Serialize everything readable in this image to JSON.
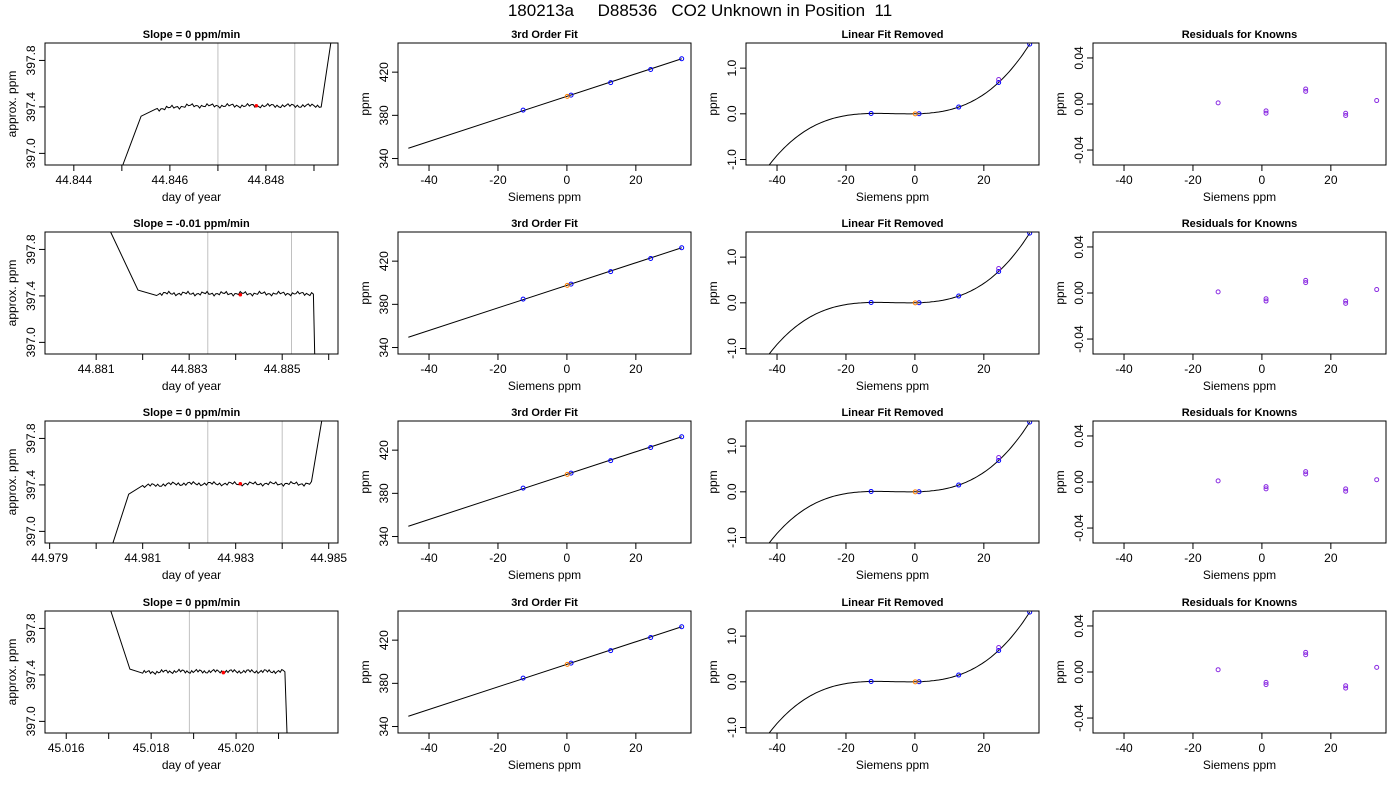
{
  "page": {
    "title": "180213a     D88536   CO2 Unknown in Position  11"
  },
  "chart_data": [
    {
      "type": "line",
      "title": "Slope =  0  ppm/min",
      "xlabel": "day of year",
      "ylabel": "approx. ppm",
      "xlim": [
        44.8434,
        44.8495
      ],
      "ylim": [
        396.9,
        397.95
      ],
      "x_ticks": [
        "44.844",
        "44.846",
        "44.848"
      ],
      "y_ticks": [
        "397.0",
        "397.4",
        "397.8"
      ],
      "vlines": [
        44.847,
        44.8486
      ],
      "trace": {
        "start": [
          44.84502,
          396.9
        ],
        "rise_end": [
          44.8454,
          397.32
        ],
        "settle": [
          44.8457,
          397.38
        ],
        "plateau_level": 397.41,
        "plateau_end": 44.84915,
        "end": [
          44.84935,
          397.95
        ]
      },
      "highlight": [
        44.8478,
        397.41
      ]
    },
    {
      "type": "scatter",
      "title": "3rd Order Fit",
      "xlabel": "Siemens ppm",
      "ylabel": "ppm",
      "xlim": [
        -49,
        36
      ],
      "ylim": [
        334,
        447
      ],
      "x_ticks": [
        "-40",
        "-20",
        "0",
        "20"
      ],
      "y_ticks": [
        "340",
        "380",
        "420"
      ],
      "line_x": [
        -46,
        33.3
      ],
      "cubic": {
        "a": 397.5,
        "b": 1.0,
        "c": 0.00045,
        "d": 3e-05
      },
      "knowns": [
        {
          "x": -12.7
        },
        {
          "x": 1.2
        },
        {
          "x": 12.7
        },
        {
          "x": 24.3
        },
        {
          "x": 33.3
        }
      ],
      "unknown": {
        "x": 0.1
      }
    },
    {
      "type": "line",
      "title": "Linear Fit Removed",
      "xlabel": "Siemens ppm",
      "ylabel": "ppm",
      "xlim": [
        -49,
        36
      ],
      "ylim": [
        -1.12,
        1.55
      ],
      "x_ticks": [
        "-40",
        "-20",
        "0",
        "20"
      ],
      "y_ticks": [
        "-1.0",
        "0.0",
        "1.0"
      ],
      "curve_x": [
        -46,
        33.3
      ],
      "cubic": {
        "a": 0,
        "b": 0.0014,
        "c": 0.000485,
        "d": 2.55e-05
      },
      "knowns": [
        {
          "x": -12.7
        },
        {
          "x": 1.2
        },
        {
          "x": 12.7
        },
        {
          "x": 24.3
        },
        {
          "x": 33.3
        }
      ],
      "unknown": {
        "x": 0.1
      }
    },
    {
      "type": "scatter",
      "title": "Residuals for Knowns",
      "xlabel": "Siemens ppm",
      "ylabel": "ppm",
      "xlim": [
        -49,
        36
      ],
      "ylim": [
        -0.053,
        0.053
      ],
      "x_ticks": [
        "-40",
        "-20",
        "0",
        "20"
      ],
      "y_ticks": [
        "-0.04",
        "0.00",
        "0.04"
      ],
      "points": [
        {
          "x": -12.7,
          "y": 0.001
        },
        {
          "x": 1.2,
          "y": -0.006
        },
        {
          "x": 1.2,
          "y": -0.008
        },
        {
          "x": 12.7,
          "y": 0.011
        },
        {
          "x": 12.7,
          "y": 0.013
        },
        {
          "x": 24.3,
          "y": -0.008
        },
        {
          "x": 24.3,
          "y": -0.01
        },
        {
          "x": 33.3,
          "y": 0.003
        }
      ]
    },
    {
      "type": "line",
      "title": "Slope =  -0.01  ppm/min",
      "xlabel": "day of year",
      "ylabel": "approx. ppm",
      "xlim": [
        44.8799,
        44.8862
      ],
      "ylim": [
        396.9,
        397.95
      ],
      "x_ticks": [
        "44.881",
        "44.883",
        "44.885"
      ],
      "y_ticks": [
        "397.0",
        "397.4",
        "397.8"
      ],
      "vlines": [
        44.8834,
        44.8852
      ],
      "trace": {
        "start": [
          44.88131,
          397.95
        ],
        "rise_end": [
          44.8819,
          397.45
        ],
        "settle": [
          44.8823,
          397.42
        ],
        "plateau_level": 397.42,
        "plateau_end": 44.88567,
        "end": [
          44.8857,
          396.9
        ]
      },
      "highlight": [
        44.8841,
        397.41
      ]
    },
    {
      "type": "scatter",
      "title": "3rd Order Fit",
      "xlabel": "Siemens ppm",
      "ylabel": "ppm",
      "xlim": [
        -49,
        36
      ],
      "ylim": [
        334,
        447
      ],
      "x_ticks": [
        "-40",
        "-20",
        "0",
        "20"
      ],
      "y_ticks": [
        "340",
        "380",
        "420"
      ],
      "line_x": [
        -46,
        33.3
      ],
      "cubic": {
        "a": 397.5,
        "b": 1.0,
        "c": 0.00045,
        "d": 3e-05
      },
      "knowns": [
        {
          "x": -12.7
        },
        {
          "x": 1.2
        },
        {
          "x": 12.7
        },
        {
          "x": 24.3
        },
        {
          "x": 33.3
        }
      ],
      "unknown": {
        "x": 0.1
      }
    },
    {
      "type": "line",
      "title": "Linear Fit Removed",
      "xlabel": "Siemens ppm",
      "ylabel": "ppm",
      "xlim": [
        -49,
        36
      ],
      "ylim": [
        -1.12,
        1.55
      ],
      "x_ticks": [
        "-40",
        "-20",
        "0",
        "20"
      ],
      "y_ticks": [
        "-1.0",
        "0.0",
        "1.0"
      ],
      "curve_x": [
        -46,
        33.3
      ],
      "cubic": {
        "a": 0,
        "b": 0.0014,
        "c": 0.000485,
        "d": 2.55e-05
      },
      "knowns": [
        {
          "x": -12.7
        },
        {
          "x": 1.2
        },
        {
          "x": 12.7
        },
        {
          "x": 24.3
        },
        {
          "x": 33.3
        }
      ],
      "unknown": {
        "x": 0.1
      }
    },
    {
      "type": "scatter",
      "title": "Residuals for Knowns",
      "xlabel": "Siemens ppm",
      "ylabel": "ppm",
      "xlim": [
        -49,
        36
      ],
      "ylim": [
        -0.053,
        0.053
      ],
      "x_ticks": [
        "-40",
        "-20",
        "0",
        "20"
      ],
      "y_ticks": [
        "-0.04",
        "0.00",
        "0.04"
      ],
      "points": [
        {
          "x": -12.7,
          "y": 0.001
        },
        {
          "x": 1.2,
          "y": -0.005
        },
        {
          "x": 1.2,
          "y": -0.007
        },
        {
          "x": 12.7,
          "y": 0.009
        },
        {
          "x": 12.7,
          "y": 0.011
        },
        {
          "x": 24.3,
          "y": -0.007
        },
        {
          "x": 24.3,
          "y": -0.009
        },
        {
          "x": 33.3,
          "y": 0.003
        }
      ]
    },
    {
      "type": "line",
      "title": "Slope =  0  ppm/min",
      "xlabel": "day of year",
      "ylabel": "approx. ppm",
      "xlim": [
        44.9789,
        44.9852
      ],
      "ylim": [
        396.9,
        397.95
      ],
      "x_ticks": [
        "44.979",
        "44.981",
        "44.983",
        "44.985"
      ],
      "y_ticks": [
        "397.0",
        "397.4",
        "397.8"
      ],
      "vlines": [
        44.9824,
        44.984
      ],
      "trace": {
        "start": [
          44.98036,
          396.9
        ],
        "rise_end": [
          44.9807,
          397.32
        ],
        "settle": [
          44.981,
          397.39
        ],
        "plateau_level": 397.41,
        "plateau_end": 44.98463,
        "end": [
          44.98485,
          397.95
        ]
      },
      "highlight": [
        44.9831,
        397.41
      ]
    },
    {
      "type": "scatter",
      "title": "3rd Order Fit",
      "xlabel": "Siemens ppm",
      "ylabel": "ppm",
      "xlim": [
        -49,
        36
      ],
      "ylim": [
        334,
        447
      ],
      "x_ticks": [
        "-40",
        "-20",
        "0",
        "20"
      ],
      "y_ticks": [
        "340",
        "380",
        "420"
      ],
      "line_x": [
        -46,
        33.3
      ],
      "cubic": {
        "a": 397.5,
        "b": 1.0,
        "c": 0.00045,
        "d": 3e-05
      },
      "knowns": [
        {
          "x": -12.7
        },
        {
          "x": 1.2
        },
        {
          "x": 12.7
        },
        {
          "x": 24.3
        },
        {
          "x": 33.3
        }
      ],
      "unknown": {
        "x": 0.1
      }
    },
    {
      "type": "line",
      "title": "Linear Fit Removed",
      "xlabel": "Siemens ppm",
      "ylabel": "ppm",
      "xlim": [
        -49,
        36
      ],
      "ylim": [
        -1.12,
        1.55
      ],
      "x_ticks": [
        "-40",
        "-20",
        "0",
        "20"
      ],
      "y_ticks": [
        "-1.0",
        "0.0",
        "1.0"
      ],
      "curve_x": [
        -46,
        33.3
      ],
      "cubic": {
        "a": 0,
        "b": 0.0014,
        "c": 0.000485,
        "d": 2.55e-05
      },
      "knowns": [
        {
          "x": -12.7
        },
        {
          "x": 1.2
        },
        {
          "x": 12.7
        },
        {
          "x": 24.3
        },
        {
          "x": 33.3
        }
      ],
      "unknown": {
        "x": 0.1
      }
    },
    {
      "type": "scatter",
      "title": "Residuals for Knowns",
      "xlabel": "Siemens ppm",
      "ylabel": "ppm",
      "xlim": [
        -49,
        36
      ],
      "ylim": [
        -0.053,
        0.053
      ],
      "x_ticks": [
        "-40",
        "-20",
        "0",
        "20"
      ],
      "y_ticks": [
        "-0.04",
        "0.00",
        "0.04"
      ],
      "points": [
        {
          "x": -12.7,
          "y": 0.001
        },
        {
          "x": 1.2,
          "y": -0.004
        },
        {
          "x": 1.2,
          "y": -0.006
        },
        {
          "x": 12.7,
          "y": 0.007
        },
        {
          "x": 12.7,
          "y": 0.009
        },
        {
          "x": 24.3,
          "y": -0.006
        },
        {
          "x": 24.3,
          "y": -0.008
        },
        {
          "x": 33.3,
          "y": 0.002
        }
      ]
    },
    {
      "type": "line",
      "title": "Slope =  0  ppm/min",
      "xlabel": "day of year",
      "ylabel": "approx. ppm",
      "xlim": [
        45.0155,
        45.0224
      ],
      "ylim": [
        396.9,
        397.95
      ],
      "x_ticks": [
        "45.016",
        "45.018",
        "45.020"
      ],
      "y_ticks": [
        "397.0",
        "397.4",
        "397.8"
      ],
      "vlines": [
        45.0189,
        45.0205
      ],
      "trace": {
        "start": [
          45.01705,
          397.95
        ],
        "rise_end": [
          45.0175,
          397.45
        ],
        "settle": [
          45.0178,
          397.42
        ],
        "plateau_level": 397.43,
        "plateau_end": 45.02115,
        "end": [
          45.0212,
          396.9
        ]
      },
      "highlight": [
        45.0197,
        397.42
      ]
    },
    {
      "type": "scatter",
      "title": "3rd Order Fit",
      "xlabel": "Siemens ppm",
      "ylabel": "ppm",
      "xlim": [
        -49,
        36
      ],
      "ylim": [
        334,
        447
      ],
      "x_ticks": [
        "-40",
        "-20",
        "0",
        "20"
      ],
      "y_ticks": [
        "340",
        "380",
        "420"
      ],
      "line_x": [
        -46,
        33.3
      ],
      "cubic": {
        "a": 397.5,
        "b": 1.0,
        "c": 0.00045,
        "d": 3e-05
      },
      "knowns": [
        {
          "x": -12.7
        },
        {
          "x": 1.2
        },
        {
          "x": 12.7
        },
        {
          "x": 24.3
        },
        {
          "x": 33.3
        }
      ],
      "unknown": {
        "x": 0.1
      }
    },
    {
      "type": "line",
      "title": "Linear Fit Removed",
      "xlabel": "Siemens ppm",
      "ylabel": "ppm",
      "xlim": [
        -49,
        36
      ],
      "ylim": [
        -1.12,
        1.55
      ],
      "x_ticks": [
        "-40",
        "-20",
        "0",
        "20"
      ],
      "y_ticks": [
        "-1.0",
        "0.0",
        "1.0"
      ],
      "curve_x": [
        -46,
        33.3
      ],
      "cubic": {
        "a": 0,
        "b": 0.0014,
        "c": 0.000485,
        "d": 2.55e-05
      },
      "knowns": [
        {
          "x": -12.7
        },
        {
          "x": 1.2
        },
        {
          "x": 12.7
        },
        {
          "x": 24.3
        },
        {
          "x": 33.3
        }
      ],
      "unknown": {
        "x": 0.1
      }
    },
    {
      "type": "scatter",
      "title": "Residuals for Knowns",
      "xlabel": "Siemens ppm",
      "ylabel": "ppm",
      "xlim": [
        -49,
        36
      ],
      "ylim": [
        -0.053,
        0.053
      ],
      "x_ticks": [
        "-40",
        "-20",
        "0",
        "20"
      ],
      "y_ticks": [
        "-0.04",
        "0.00",
        "0.04"
      ],
      "points": [
        {
          "x": -12.7,
          "y": 0.002
        },
        {
          "x": 1.2,
          "y": -0.009
        },
        {
          "x": 1.2,
          "y": -0.011
        },
        {
          "x": 12.7,
          "y": 0.015
        },
        {
          "x": 12.7,
          "y": 0.017
        },
        {
          "x": 24.3,
          "y": -0.012
        },
        {
          "x": 24.3,
          "y": -0.014
        },
        {
          "x": 33.3,
          "y": 0.004
        }
      ]
    }
  ],
  "colors": {
    "axis": "#000000",
    "trace": "#000000",
    "vline": "#c0c0c0",
    "highlight": "#ff0000",
    "known_point": "#0000ff",
    "unknown_point": "#ff8000",
    "residual_point": "#8a2be2"
  }
}
